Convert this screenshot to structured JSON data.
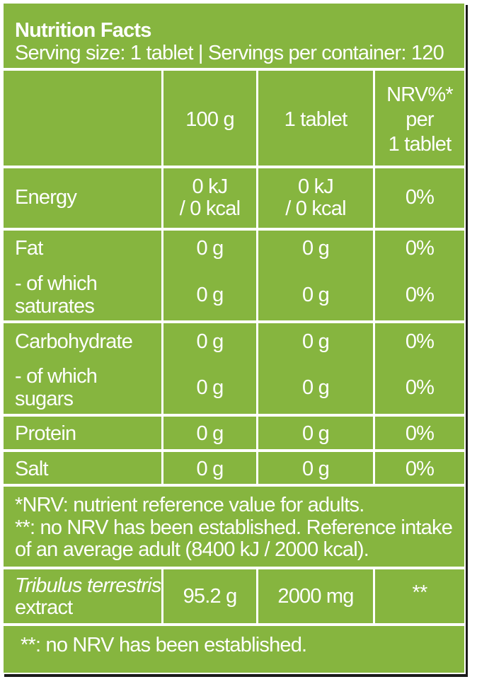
{
  "header": {
    "title": "Nutrition Facts",
    "serving": "Serving size: 1 tablet | Servings per container: 120"
  },
  "columns": {
    "per_100g": "100 g",
    "per_tablet": "1 tablet",
    "nrv_line1": "NRV%*",
    "nrv_line2": "per",
    "nrv_line3": "1 tablet"
  },
  "rows": {
    "energy": {
      "label": "Energy",
      "per100_l1": "0 kJ",
      "per100_l2": "/ 0 kcal",
      "tab_l1": "0 kJ",
      "tab_l2": "/ 0 kcal",
      "nrv": "0%"
    },
    "fat": {
      "label": "Fat",
      "per100": "0 g",
      "tab": "0 g",
      "nrv": "0%"
    },
    "saturates": {
      "label_l1": "- of which",
      "label_l2": "saturates",
      "per100": "0 g",
      "tab": "0 g",
      "nrv": "0%"
    },
    "carbohydrate": {
      "label": "Carbohydrate",
      "per100": "0 g",
      "tab": "0 g",
      "nrv": "0%"
    },
    "sugars": {
      "label_l1": "- of which",
      "label_l2": "sugars",
      "per100": "0 g",
      "tab": "0 g",
      "nrv": "0%"
    },
    "protein": {
      "label": "Protein",
      "per100": "0 g",
      "tab": "0 g",
      "nrv": "0%"
    },
    "salt": {
      "label": "Salt",
      "per100": "0 g",
      "tab": "0 g",
      "nrv": "0%"
    }
  },
  "footnote": {
    "line1": "*NRV: nutrient reference value for adults.",
    "line2": "**: no NRV has been established. Reference intake",
    "line3": "of an average adult (8400 kJ / 2000 kcal)."
  },
  "active": {
    "name_l1": "Tribulus terrestris",
    "name_l2": "extract",
    "per100": "95.2 g",
    "tab": "2000 mg",
    "nrv": "**"
  },
  "bottom_note": "**: no NRV has been established.",
  "colors": {
    "background": "#86b53f",
    "rule": "#ffffff",
    "text": "#ffffff",
    "shadow": "#1b1b1b"
  }
}
